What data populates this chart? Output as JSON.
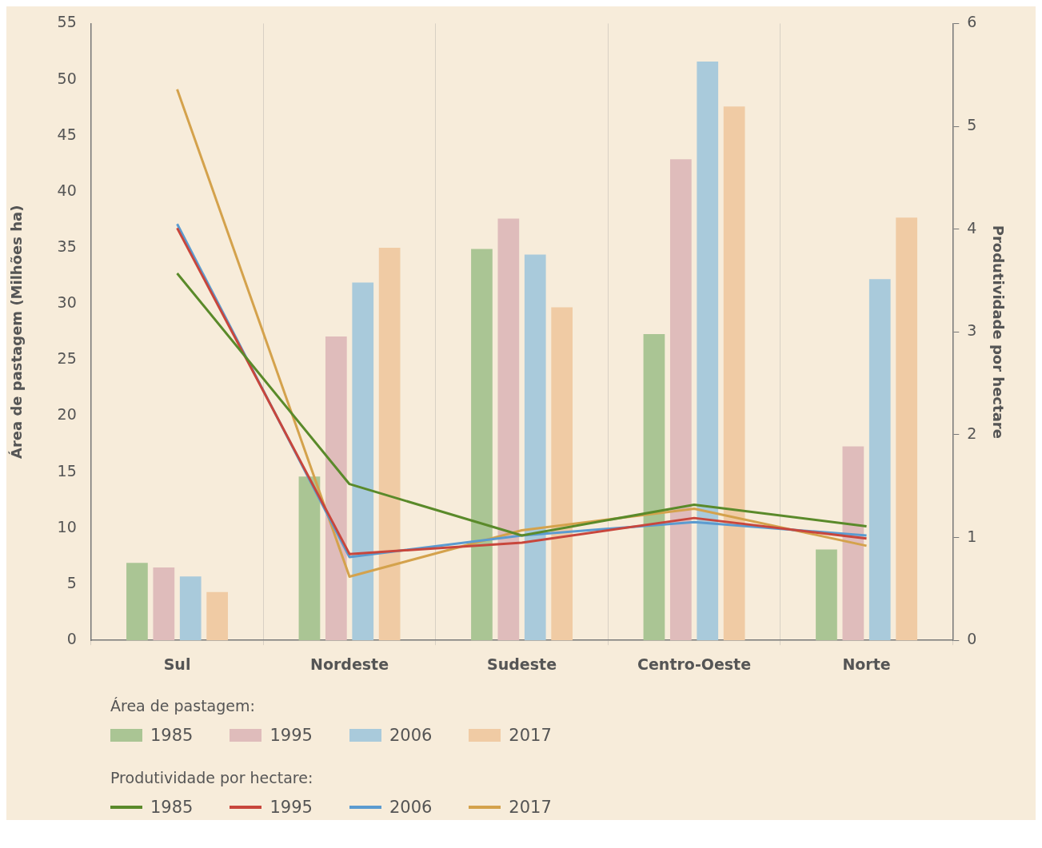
{
  "chart_data": {
    "type": "bar",
    "ylabel": "Área de pastagem (Milhões ha)",
    "y2label": "Produtividade por hectare",
    "categories": [
      "Sul",
      "Nordeste",
      "Sudeste",
      "Centro-Oeste",
      "Norte"
    ],
    "series": [
      {
        "name": "1985",
        "color": "#aac594",
        "values": [
          6.9,
          14.6,
          34.9,
          27.3,
          8.1
        ]
      },
      {
        "name": "1995",
        "color": "#dfbcbb",
        "values": [
          6.5,
          27.1,
          37.6,
          42.9,
          17.3
        ]
      },
      {
        "name": "2006",
        "color": "#a9cadb",
        "values": [
          5.7,
          31.9,
          34.4,
          51.6,
          32.2
        ]
      },
      {
        "name": "2017",
        "color": "#f0cba4",
        "values": [
          4.3,
          35.0,
          29.7,
          47.6,
          37.7
        ]
      },
      {
        "name": "1985",
        "type": "line",
        "axis": "y2",
        "color": "#5a8a2a",
        "values": [
          3.57,
          1.52,
          1.02,
          1.32,
          1.11
        ]
      },
      {
        "name": "1995",
        "type": "line",
        "axis": "y2",
        "color": "#c8463c",
        "values": [
          4.01,
          0.84,
          0.95,
          1.19,
          0.99
        ]
      },
      {
        "name": "2006",
        "type": "line",
        "axis": "y2",
        "color": "#5b9bd0",
        "values": [
          4.05,
          0.81,
          1.02,
          1.15,
          1.02
        ]
      },
      {
        "name": "2017",
        "type": "line",
        "axis": "y2",
        "color": "#d4a24c",
        "values": [
          5.36,
          0.62,
          1.07,
          1.28,
          0.92
        ]
      }
    ],
    "ylim": [
      0,
      55
    ],
    "yticks": [
      0,
      5,
      10,
      15,
      20,
      25,
      30,
      35,
      40,
      45,
      50,
      55
    ],
    "y2lim": [
      0,
      6
    ],
    "y2ticks": [
      0,
      1,
      2,
      3,
      4,
      5,
      6
    ],
    "grid": "x",
    "legend": "bottom left",
    "marker": "none",
    "annotations": [
      "Área de pastagem:",
      "Produtividade por hectare:"
    ]
  }
}
